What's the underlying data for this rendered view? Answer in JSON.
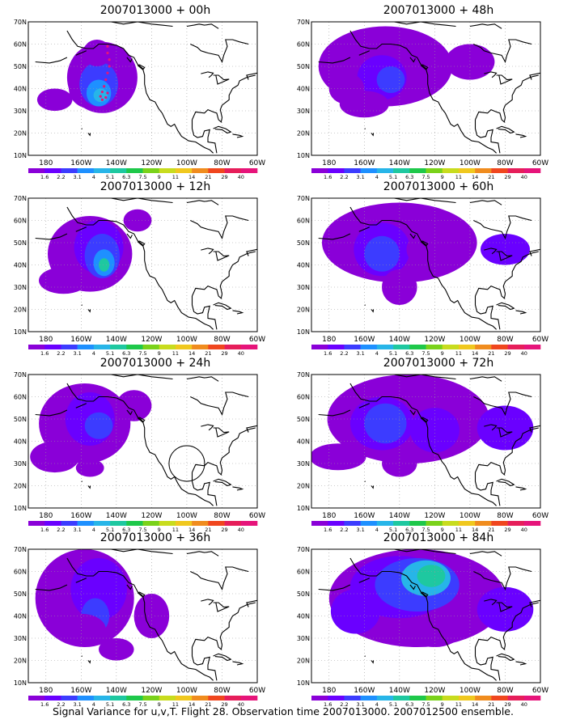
{
  "figure": {
    "footer": "Signal Variance for u,v,T. Flight 28. Observation time 2007013000. 2007012500 ensemble."
  },
  "axes": {
    "lon_labels": [
      "180",
      "160W",
      "140W",
      "120W",
      "100W",
      "80W",
      "60W"
    ],
    "lat_labels": [
      "10N",
      "20N",
      "30N",
      "40N",
      "50N",
      "60N",
      "70N"
    ]
  },
  "colorbar": {
    "labels": [
      "1.6",
      "2.2",
      "3.1",
      "4",
      "5.1",
      "6.3",
      "7.5",
      "9",
      "11",
      "14",
      "21",
      "29",
      "40"
    ],
    "colors": [
      "#8a00d8",
      "#6a00ff",
      "#3c3cff",
      "#1e90ff",
      "#27b5e8",
      "#1ec8a0",
      "#1ec84a",
      "#7ad21a",
      "#c8dc1e",
      "#f0c81e",
      "#f08c1e",
      "#f0461e",
      "#e61e5a",
      "#e6147a"
    ]
  },
  "panels": [
    {
      "title": "2007013000 + 00h",
      "hours": 0
    },
    {
      "title": "2007013000 + 48h",
      "hours": 48
    },
    {
      "title": "2007013000 + 12h",
      "hours": 12
    },
    {
      "title": "2007013000 + 60h",
      "hours": 60
    },
    {
      "title": "2007013000 + 24h",
      "hours": 24
    },
    {
      "title": "2007013000 + 72h",
      "hours": 72
    },
    {
      "title": "2007013000 + 36h",
      "hours": 36
    },
    {
      "title": "2007013000 + 84h",
      "hours": 84
    }
  ],
  "flight_track_color": "#e6147a",
  "map_extent": {
    "lon": [
      -190,
      -60
    ],
    "lat": [
      10,
      70
    ]
  }
}
